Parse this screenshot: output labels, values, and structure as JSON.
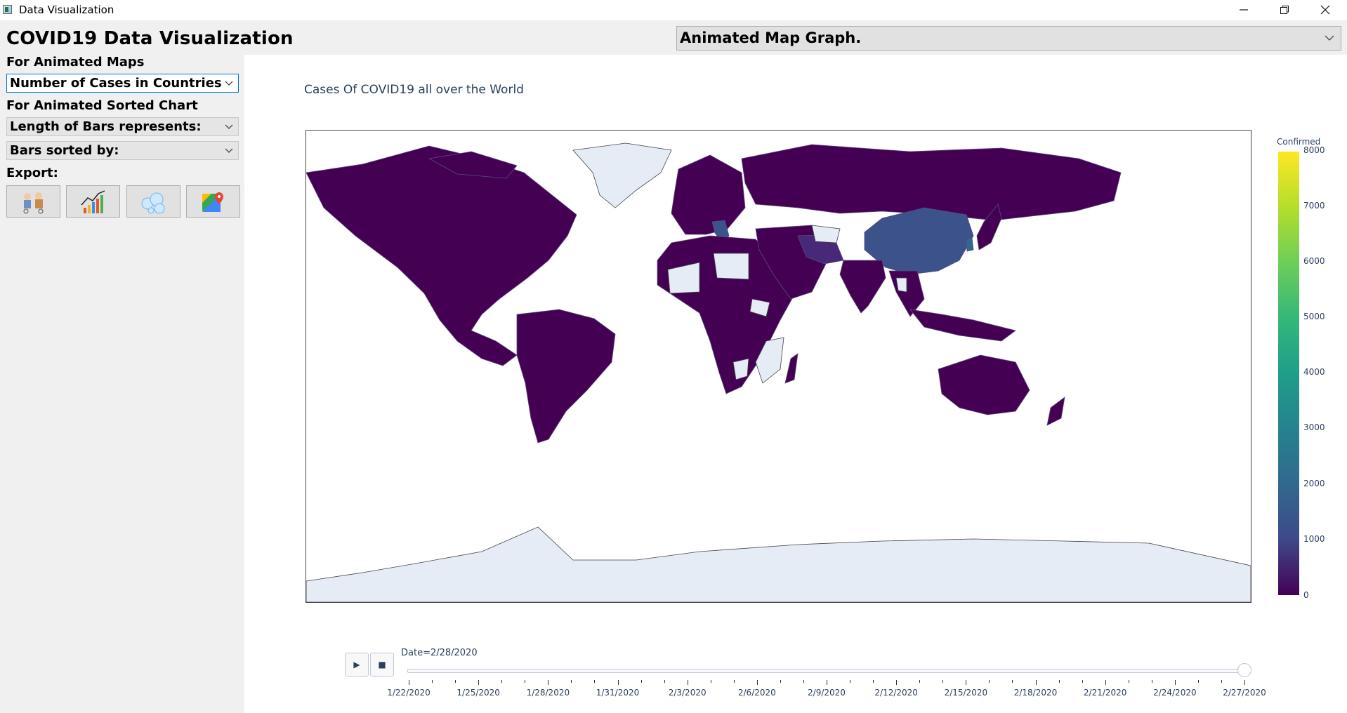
{
  "window": {
    "title": "Data Visualization"
  },
  "app": {
    "heading": "COVID19 Data Visualization",
    "animated_maps_label": "For Animated Maps",
    "animated_maps_select": "Number of Cases in Countries",
    "sorted_chart_label": "For Animated Sorted Chart",
    "bar_length_select": "Length of Bars represents:",
    "bar_sort_select": "Bars sorted by:",
    "export_label": "Export:",
    "export_buttons": [
      "people-icon",
      "growth-chart-icon",
      "bubbles-icon",
      "maps-icon"
    ]
  },
  "graph_type_select": "Animated Map Graph.",
  "chart": {
    "title": "Cases Of COVID19 all over the World",
    "colorbar_title": "Confirmed",
    "colorbar_ticks": [
      "8000",
      "7000",
      "6000",
      "5000",
      "4000",
      "3000",
      "2000",
      "1000",
      "0"
    ],
    "colors": {
      "low": "#440154",
      "mid": "#21918c",
      "high": "#fde725",
      "nodata": "#e5ecf6"
    }
  },
  "chart_data": {
    "type": "heatmap",
    "subtype": "choropleth",
    "title": "Cases Of COVID19 all over the World",
    "color_scale": "viridis",
    "color_range": [
      0,
      8000
    ],
    "colorbar_title": "Confirmed",
    "frame": "Date=2/28/2020",
    "highlighted_regions": {
      "China": "~2000",
      "South Korea": "~2000",
      "Iran": "~400",
      "Italy": "~900",
      "Japan": "~230"
    }
  },
  "slider": {
    "current_label": "Date=2/28/2020",
    "ticks": [
      "1/22/2020",
      "1/25/2020",
      "1/28/2020",
      "1/31/2020",
      "2/3/2020",
      "2/6/2020",
      "2/9/2020",
      "2/12/2020",
      "2/15/2020",
      "2/18/2020",
      "2/21/2020",
      "2/24/2020",
      "2/27/2020"
    ],
    "play_icon": "play-icon",
    "stop_icon": "stop-icon"
  }
}
